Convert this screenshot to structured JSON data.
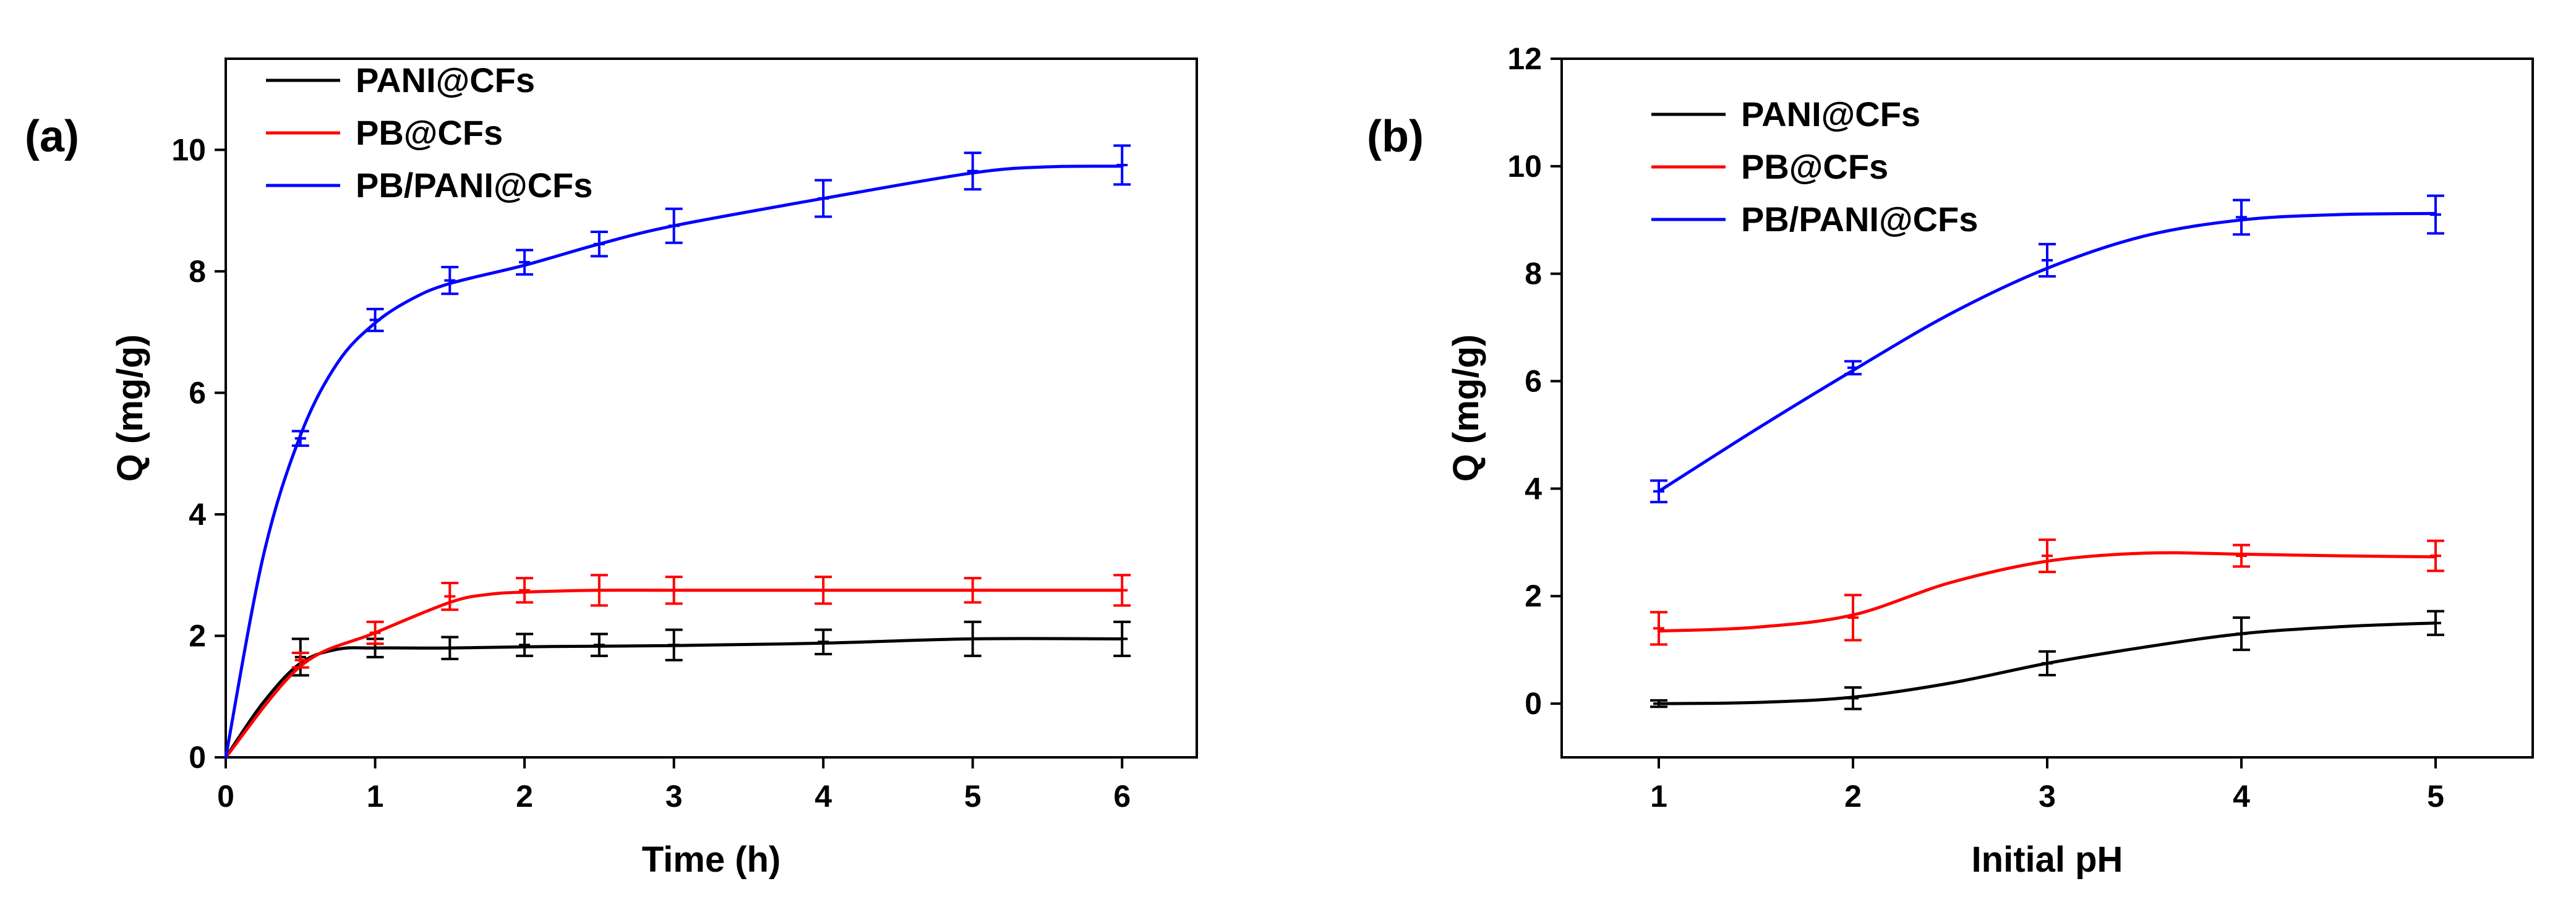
{
  "chart_data": [
    {
      "type": "line",
      "panel_label": "(a)",
      "xlabel": "Time (h)",
      "ylabel": "Q (mg/g)",
      "xlim": [
        0,
        6.5
      ],
      "ylim": [
        0,
        11.5
      ],
      "xticks": [
        "0",
        "1",
        "2",
        "3",
        "4",
        "5",
        "6"
      ],
      "yticks": [
        "0",
        "2",
        "4",
        "6",
        "8",
        "10"
      ],
      "xtick_values": [
        0,
        1,
        2,
        3,
        4,
        5,
        6
      ],
      "ytick_values": [
        0,
        2,
        4,
        6,
        8,
        10
      ],
      "legend_position": "top-left",
      "series": [
        {
          "name": "PANI@CFs",
          "color": "#000000",
          "x": [
            0.5,
            1,
            1.5,
            2,
            2.5,
            3,
            4,
            5,
            6
          ],
          "values": [
            1.65,
            1.8,
            1.8,
            1.85,
            1.85,
            1.85,
            1.9,
            1.95,
            1.95
          ],
          "errors": [
            0.3,
            0.15,
            0.18,
            0.18,
            0.18,
            0.25,
            0.2,
            0.28,
            0.28
          ],
          "curve_x": [
            0,
            0.25,
            0.5,
            0.75,
            1,
            1.5,
            2,
            2.5,
            3,
            4,
            5,
            6
          ],
          "curve_y": [
            0,
            0.9,
            1.55,
            1.78,
            1.8,
            1.8,
            1.82,
            1.83,
            1.84,
            1.88,
            1.95,
            1.95
          ]
        },
        {
          "name": "PB@CFs",
          "color": "#ff0000",
          "x": [
            0.5,
            1,
            1.5,
            2,
            2.5,
            3,
            4,
            5,
            6
          ],
          "values": [
            1.6,
            2.05,
            2.65,
            2.75,
            2.75,
            2.75,
            2.75,
            2.75,
            2.75
          ],
          "errors": [
            0.12,
            0.18,
            0.22,
            0.2,
            0.25,
            0.22,
            0.22,
            0.2,
            0.25
          ],
          "curve_x": [
            0,
            0.5,
            1,
            1.5,
            1.75,
            2,
            2.5,
            3,
            4,
            5,
            6
          ],
          "curve_y": [
            0,
            1.5,
            2.05,
            2.55,
            2.68,
            2.72,
            2.75,
            2.75,
            2.75,
            2.75,
            2.75
          ]
        },
        {
          "name": "PB/PANI@CFs",
          "color": "#0000ff",
          "x": [
            0.5,
            1,
            1.5,
            2,
            2.5,
            3,
            4,
            5,
            6
          ],
          "values": [
            5.25,
            7.2,
            7.85,
            8.15,
            8.45,
            8.75,
            9.2,
            9.65,
            9.75
          ],
          "errors": [
            0.12,
            0.18,
            0.22,
            0.2,
            0.2,
            0.28,
            0.3,
            0.3,
            0.32
          ],
          "curve_x": [
            0,
            0.25,
            0.5,
            0.75,
            1,
            1.25,
            1.5,
            2,
            2.5,
            3,
            4,
            5,
            5.5,
            6
          ],
          "curve_y": [
            0,
            3.3,
            5.3,
            6.5,
            7.15,
            7.55,
            7.8,
            8.1,
            8.45,
            8.75,
            9.2,
            9.62,
            9.72,
            9.73
          ]
        }
      ]
    },
    {
      "type": "line",
      "panel_label": "(b)",
      "xlabel": "Initial pH",
      "ylabel": "Q (mg/g)",
      "xlim": [
        0.5,
        5.5
      ],
      "ylim": [
        -1,
        12
      ],
      "xticks": [
        "1",
        "2",
        "3",
        "4",
        "5"
      ],
      "yticks": [
        "0",
        "2",
        "4",
        "6",
        "8",
        "10",
        "12"
      ],
      "xtick_values": [
        1,
        2,
        3,
        4,
        5
      ],
      "ytick_values": [
        0,
        2,
        4,
        6,
        8,
        10,
        12
      ],
      "legend_position": "top-left",
      "series": [
        {
          "name": "PANI@CFs",
          "color": "#000000",
          "x": [
            1,
            2,
            3,
            4,
            5
          ],
          "values": [
            0.0,
            0.1,
            0.75,
            1.3,
            1.5
          ],
          "errors": [
            0.06,
            0.2,
            0.22,
            0.3,
            0.22
          ],
          "curve_x": [
            1,
            1.5,
            2,
            2.5,
            3,
            3.5,
            4,
            4.5,
            5
          ],
          "curve_y": [
            0.0,
            0.02,
            0.12,
            0.38,
            0.75,
            1.05,
            1.3,
            1.43,
            1.5
          ]
        },
        {
          "name": "PB@CFs",
          "color": "#ff0000",
          "x": [
            1,
            2,
            3,
            4,
            5
          ],
          "values": [
            1.4,
            1.6,
            2.75,
            2.75,
            2.75
          ],
          "errors": [
            0.3,
            0.42,
            0.3,
            0.2,
            0.28
          ],
          "curve_x": [
            1,
            1.5,
            2,
            2.5,
            3,
            3.5,
            4,
            4.5,
            5
          ],
          "curve_y": [
            1.35,
            1.42,
            1.65,
            2.25,
            2.65,
            2.8,
            2.78,
            2.75,
            2.73
          ]
        },
        {
          "name": "PB/PANI@CFs",
          "color": "#0000ff",
          "x": [
            1,
            2,
            3,
            4,
            5
          ],
          "values": [
            3.95,
            6.25,
            8.25,
            9.05,
            9.1
          ],
          "errors": [
            0.2,
            0.12,
            0.3,
            0.32,
            0.35
          ],
          "curve_x": [
            1,
            1.5,
            2,
            2.5,
            3,
            3.5,
            4,
            4.5,
            5
          ],
          "curve_y": [
            3.95,
            5.1,
            6.2,
            7.25,
            8.1,
            8.7,
            9.0,
            9.1,
            9.12
          ]
        }
      ]
    }
  ]
}
